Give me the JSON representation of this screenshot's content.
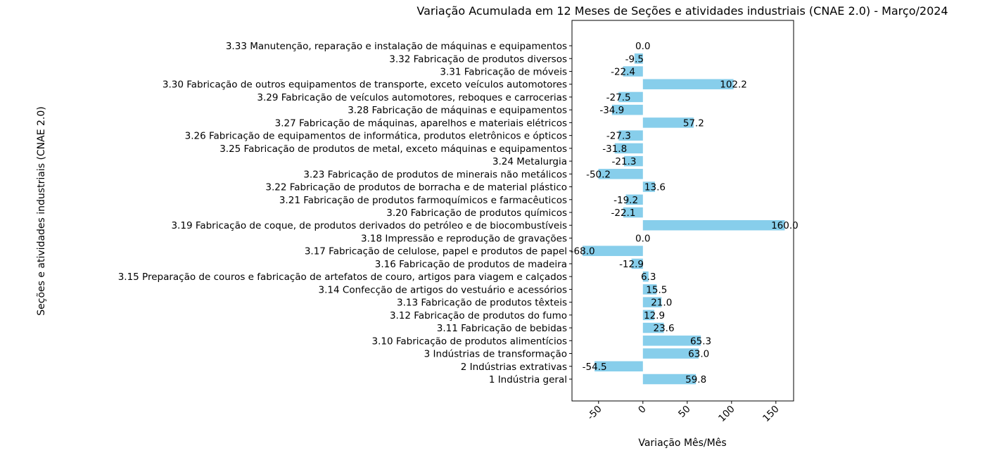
{
  "chart_data": {
    "type": "bar",
    "orientation": "horizontal",
    "title": "Variação Acumulada em 12 Meses de Seções e atividades industriais (CNAE 2.0) - Março/2024",
    "xlabel": "Variação Mês/Mês",
    "ylabel": "Seções e atividades industriais (CNAE 2.0)",
    "xlim": [
      -80,
      170
    ],
    "xticks": [
      -50,
      0,
      50,
      100,
      150
    ],
    "xtick_labels": [
      "-50",
      "0",
      "50",
      "100",
      "150"
    ],
    "bar_color": "#87CEEB",
    "grid": false,
    "categories": [
      "1 Indústria geral",
      "2 Indústrias extrativas",
      "3 Indústrias de transformação",
      "3.10 Fabricação de produtos alimentícios",
      "3.11 Fabricação de bebidas",
      "3.12 Fabricação de produtos do fumo",
      "3.13 Fabricação de produtos têxteis",
      "3.14 Confecção de artigos do vestuário e acessórios",
      "3.15 Preparação de couros e fabricação de artefatos de couro, artigos para viagem e calçados",
      "3.16 Fabricação de produtos de madeira",
      "3.17 Fabricação de celulose, papel e produtos de papel",
      "3.18 Impressão e reprodução de gravações",
      "3.19 Fabricação de coque, de produtos derivados do petróleo e de biocombustíveis",
      "3.20 Fabricação de produtos químicos",
      "3.21 Fabricação de produtos farmoquímicos e farmacêuticos",
      "3.22 Fabricação de produtos de borracha e de material plástico",
      "3.23 Fabricação de produtos de minerais não metálicos",
      "3.24 Metalurgia",
      "3.25 Fabricação de produtos de metal, exceto máquinas e equipamentos",
      "3.26 Fabricação de equipamentos de informática, produtos eletrônicos e ópticos",
      "3.27 Fabricação de máquinas, aparelhos e materiais elétricos",
      "3.28 Fabricação de máquinas e equipamentos",
      "3.29 Fabricação de veículos automotores, reboques e carrocerias",
      "3.30 Fabricação de outros equipamentos de transporte, exceto veículos automotores",
      "3.31 Fabricação de móveis",
      "3.32 Fabricação de produtos diversos",
      "3.33 Manutenção, reparação e instalação de máquinas e equipamentos"
    ],
    "values": [
      59.8,
      -54.5,
      63.0,
      65.3,
      23.6,
      12.9,
      21.0,
      15.5,
      6.3,
      -12.9,
      -68.0,
      0.0,
      160.0,
      -22.1,
      -19.2,
      13.6,
      -50.2,
      -21.3,
      -31.8,
      -27.3,
      57.2,
      -34.9,
      -27.5,
      102.2,
      -22.4,
      -9.5,
      0.0
    ],
    "value_labels": [
      "59.8",
      "-54.5",
      "63.0",
      "65.3",
      "23.6",
      "12.9",
      "21.0",
      "15.5",
      "6.3",
      "-12.9",
      "-68.0",
      "0.0",
      "160.0",
      "-22.1",
      "-19.2",
      "13.6",
      "-50.2",
      "-21.3",
      "-31.8",
      "-27.3",
      "57.2",
      "-34.9",
      "-27.5",
      "102.2",
      "-22.4",
      "-9.5",
      "0.0"
    ]
  }
}
